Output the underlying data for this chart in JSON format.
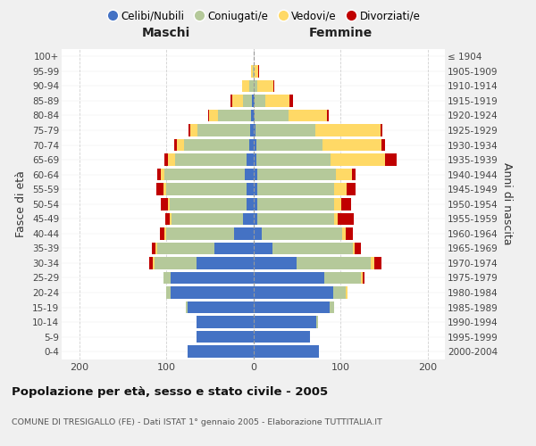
{
  "age_groups": [
    "0-4",
    "5-9",
    "10-14",
    "15-19",
    "20-24",
    "25-29",
    "30-34",
    "35-39",
    "40-44",
    "45-49",
    "50-54",
    "55-59",
    "60-64",
    "65-69",
    "70-74",
    "75-79",
    "80-84",
    "85-89",
    "90-94",
    "95-99",
    "100+"
  ],
  "birth_years": [
    "2000-2004",
    "1995-1999",
    "1990-1994",
    "1985-1989",
    "1980-1984",
    "1975-1979",
    "1970-1974",
    "1965-1969",
    "1960-1964",
    "1955-1959",
    "1950-1954",
    "1945-1949",
    "1940-1944",
    "1935-1939",
    "1930-1934",
    "1925-1929",
    "1920-1924",
    "1915-1919",
    "1910-1914",
    "1905-1909",
    "≤ 1904"
  ],
  "colors": {
    "celibe": "#4472c4",
    "coniugato": "#b5c99a",
    "vedovo": "#ffd966",
    "divorziato": "#c00000"
  },
  "maschi": {
    "celibe": [
      75,
      65,
      65,
      75,
      95,
      95,
      65,
      45,
      22,
      12,
      8,
      8,
      10,
      8,
      5,
      4,
      3,
      2,
      0,
      0,
      0
    ],
    "coniugato": [
      0,
      0,
      0,
      2,
      5,
      8,
      48,
      65,
      78,
      82,
      88,
      92,
      92,
      82,
      75,
      60,
      38,
      10,
      5,
      1,
      0
    ],
    "vedovo": [
      0,
      0,
      0,
      0,
      0,
      0,
      2,
      2,
      2,
      2,
      2,
      3,
      4,
      8,
      8,
      8,
      10,
      12,
      8,
      2,
      0
    ],
    "divorziato": [
      0,
      0,
      0,
      0,
      0,
      0,
      4,
      4,
      5,
      5,
      8,
      8,
      4,
      4,
      3,
      2,
      1,
      2,
      0,
      0,
      0
    ]
  },
  "femmine": {
    "nubile": [
      75,
      65,
      72,
      88,
      92,
      82,
      50,
      22,
      10,
      5,
      5,
      5,
      5,
      4,
      4,
      3,
      2,
      2,
      1,
      0,
      0
    ],
    "coniugata": [
      0,
      0,
      2,
      5,
      14,
      42,
      85,
      92,
      92,
      88,
      88,
      88,
      90,
      85,
      75,
      68,
      38,
      12,
      4,
      1,
      0
    ],
    "vedova": [
      0,
      0,
      0,
      0,
      2,
      2,
      4,
      2,
      4,
      4,
      8,
      14,
      18,
      62,
      68,
      75,
      45,
      28,
      18,
      5,
      0
    ],
    "divorziata": [
      0,
      0,
      0,
      0,
      0,
      2,
      8,
      8,
      8,
      18,
      11,
      10,
      4,
      14,
      4,
      2,
      2,
      4,
      1,
      1,
      0
    ]
  },
  "xlim": 220,
  "xtick_vals": [
    -200,
    -100,
    0,
    100,
    200
  ],
  "title": "Popolazione per età, sesso e stato civile - 2005",
  "subtitle": "COMUNE DI TRESIGALLO (FE) - Dati ISTAT 1° gennaio 2005 - Elaborazione TUTTITALIA.IT",
  "ylabel_left": "Fasce di età",
  "ylabel_right": "Anni di nascita",
  "label_maschi": "Maschi",
  "label_femmine": "Femmine",
  "legend_labels": [
    "Celibi/Nubili",
    "Coniugati/e",
    "Vedovi/e",
    "Divorziati/e"
  ],
  "bg_color": "#f0f0f0",
  "plot_bg": "#ffffff",
  "bar_height": 0.82
}
